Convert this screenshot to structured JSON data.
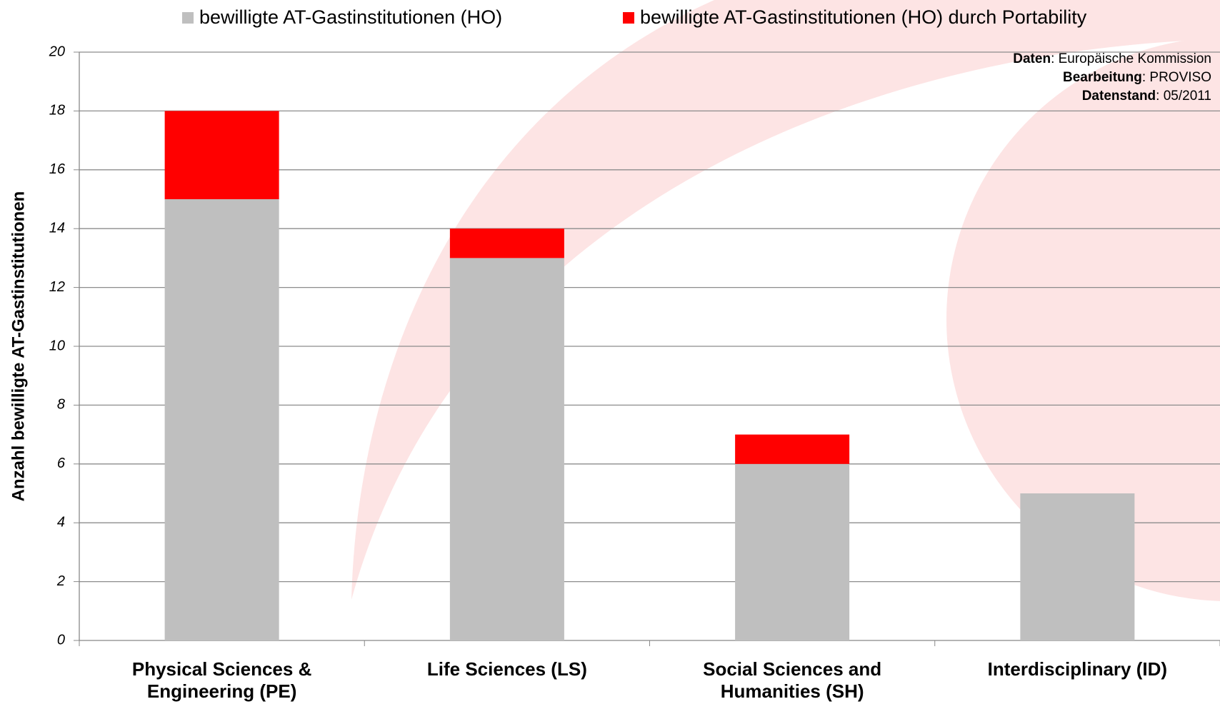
{
  "chart_data": {
    "type": "stacked_bar",
    "y_label": "Anzahl bewilligte AT-Gastinstitutionen",
    "categories": [
      "Physical Sciences & Engineering (PE)",
      "Life Sciences (LS)",
      "Social Sciences and Humanities (SH)",
      "Interdisciplinary (ID)"
    ],
    "series": [
      {
        "name": "bewilligte AT-Gastinstitutionen (HO)",
        "color": "#bfbfbf",
        "values": [
          15,
          13,
          6,
          5
        ]
      },
      {
        "name": "bewilligte AT-Gastinstitutionen (HO) durch Portability",
        "color": "#ff0000",
        "values": [
          3,
          1,
          1,
          0
        ]
      }
    ],
    "ylim": [
      0,
      20
    ],
    "yticks": [
      0,
      2,
      4,
      6,
      8,
      10,
      12,
      14,
      16,
      18,
      20
    ],
    "grid": true,
    "legend": "top",
    "source": [
      {
        "key": "Daten",
        "text": ": Europäische Kommission"
      },
      {
        "key": "Bearbeitung",
        "text": ": PROVISO"
      },
      {
        "key": "Datenstand",
        "text": ": 05/2011"
      }
    ]
  }
}
